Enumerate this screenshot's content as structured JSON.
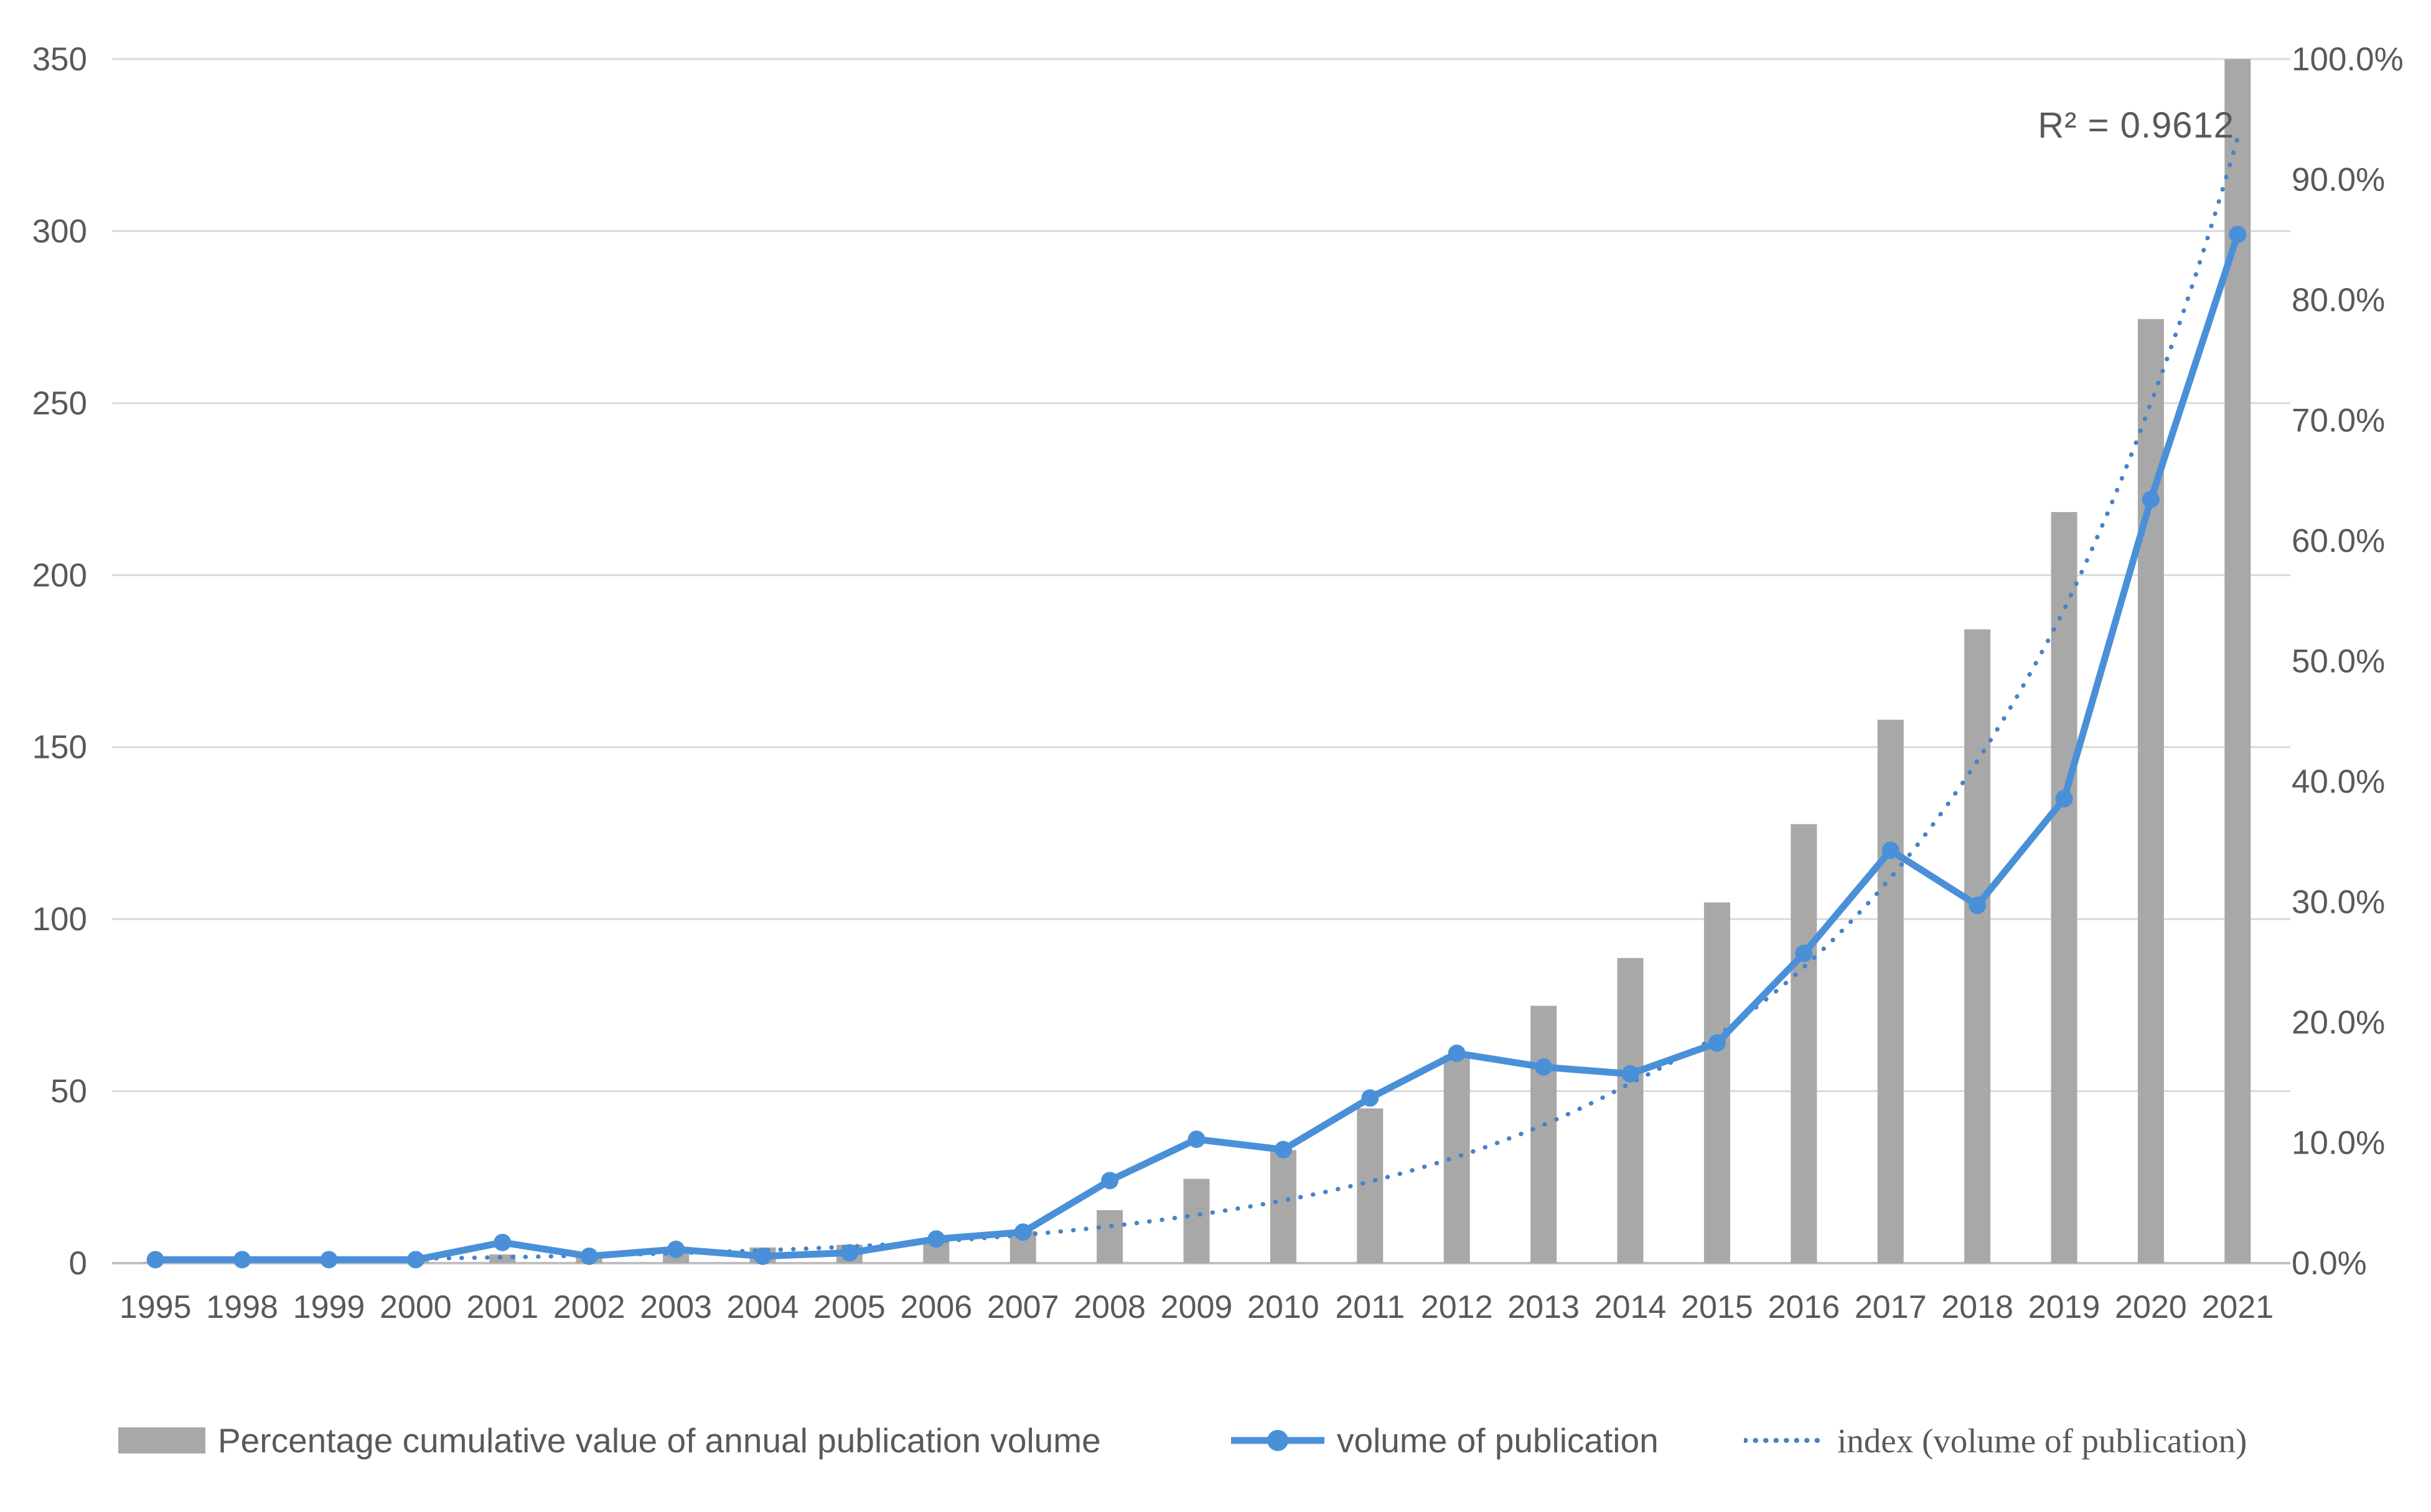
{
  "annotation": {
    "r_squared": "R² = 0.9612"
  },
  "legend": [
    {
      "label": "Percentage cumulative value of annual publication volume",
      "series": "bars"
    },
    {
      "label": "volume of publication",
      "series": "line"
    },
    {
      "label": "index (volume of publication)",
      "series": "trendline"
    }
  ],
  "colors": {
    "bar": "#a8a8a8",
    "line": "#4a90d8",
    "trendline": "#4583c9",
    "text": "#595959",
    "gridline": "#d9d9d9",
    "zero_line": "#c0c0c0",
    "background": "#ffffff"
  },
  "chart_data": {
    "type": "bar",
    "subtype": "combo-bar-line-trendline",
    "title": "",
    "xlabel": "",
    "ylabel": "",
    "grid": true,
    "legend_position": "bottom",
    "categories": [
      "1995",
      "1998",
      "1999",
      "2000",
      "2001",
      "2002",
      "2003",
      "2004",
      "2005",
      "2006",
      "2007",
      "2008",
      "2009",
      "2010",
      "2011",
      "2012",
      "2013",
      "2014",
      "2015",
      "2016",
      "2017",
      "2018",
      "2019",
      "2020",
      "2021"
    ],
    "series": [
      {
        "name": "Percentage cumulative value of annual publication volume",
        "type": "bar",
        "axis": "right",
        "unit": "%",
        "values": [
          0.07,
          0.14,
          0.22,
          0.29,
          0.72,
          0.87,
          1.16,
          1.3,
          1.52,
          2.02,
          2.67,
          4.4,
          7.0,
          9.39,
          12.85,
          17.26,
          21.37,
          25.34,
          29.96,
          36.46,
          45.13,
          52.64,
          62.38,
          78.41,
          100.0
        ]
      },
      {
        "name": "volume of publication",
        "type": "line",
        "axis": "left",
        "values": [
          1,
          1,
          1,
          1,
          6,
          2,
          4,
          2,
          3,
          7,
          9,
          24,
          36,
          33,
          48,
          61,
          57,
          55,
          64,
          90,
          120,
          104,
          135,
          222,
          299
        ]
      },
      {
        "name": "index (volume of publication)",
        "type": "trendline",
        "style": "round-dot",
        "axis": "left",
        "r_squared": 0.9612,
        "values": [
          0.6,
          0.8,
          1.0,
          1.3,
          1.7,
          2.2,
          2.9,
          3.7,
          4.8,
          6.3,
          8.2,
          10.7,
          14.0,
          18.2,
          23.7,
          30.9,
          40.2,
          52.3,
          66.0,
          86.0,
          112.0,
          146.0,
          190.0,
          250.0,
          327.0
        ]
      }
    ],
    "left_axis": {
      "min": 0,
      "max": 350,
      "step": 50,
      "ticks": [
        "0",
        "50",
        "100",
        "150",
        "200",
        "250",
        "300",
        "350"
      ]
    },
    "right_axis": {
      "min": 0,
      "max": 100,
      "step": 10,
      "ticks": [
        "0.0%",
        "10.0%",
        "20.0%",
        "30.0%",
        "40.0%",
        "50.0%",
        "60.0%",
        "70.0%",
        "80.0%",
        "90.0%",
        "100.0%"
      ]
    }
  }
}
